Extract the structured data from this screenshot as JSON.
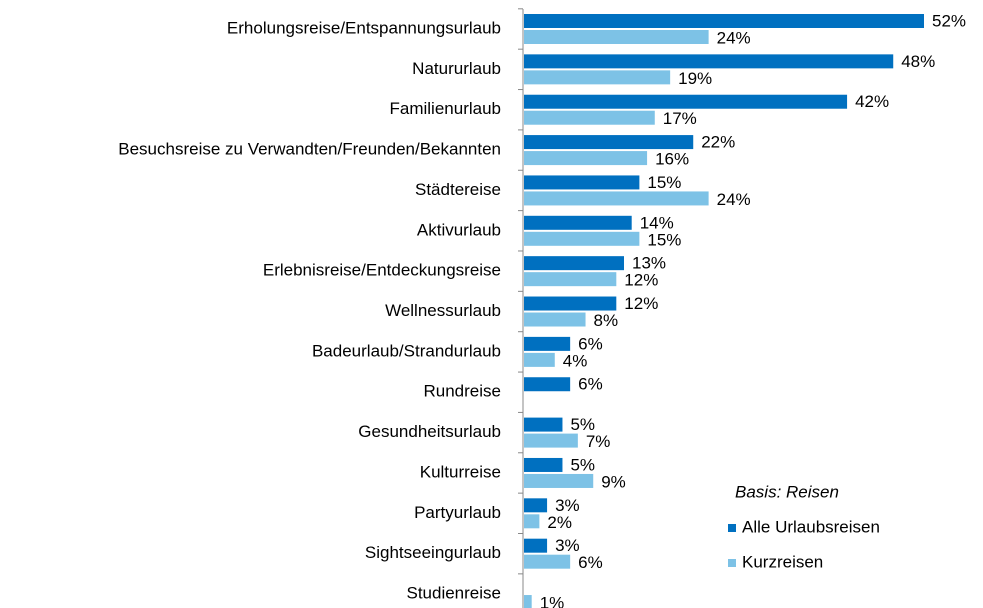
{
  "chart_data": {
    "type": "hbar",
    "categories": [
      "Erholungsreise/Entspannungsurlaub",
      "Natururlaub",
      "Familienurlaub",
      "Besuchsreise zu Verwandten/Freunden/Bekannten",
      "Städtereise",
      "Aktivurlaub",
      "Erlebnisreise/Entdeckungsreise",
      "Wellnessurlaub",
      "Badeurlaub/Strandurlaub",
      "Rundreise",
      "Gesundheitsurlaub",
      "Kulturreise",
      "Partyurlaub",
      "Sightseeingurlaub",
      "Studienreise"
    ],
    "series": [
      {
        "name": "Alle Urlaubsreisen",
        "color": "#0070c0",
        "values": [
          52,
          48,
          42,
          22,
          15,
          14,
          13,
          12,
          6,
          6,
          5,
          5,
          3,
          3,
          null
        ],
        "value_labels": [
          "52%",
          "48%",
          "42%",
          "22%",
          "15%",
          "14%",
          "13%",
          "12%",
          "6%",
          "6%",
          "5%",
          "5%",
          "3%",
          "3%",
          null
        ]
      },
      {
        "name": "Kurzreisen",
        "color": "#7dc2e6",
        "values": [
          24,
          19,
          17,
          16,
          24,
          15,
          12,
          8,
          4,
          null,
          7,
          9,
          2,
          6,
          1
        ],
        "value_labels": [
          "24%",
          "19%",
          "17%",
          "16%",
          "24%",
          "15%",
          "12%",
          "8%",
          "4%",
          null,
          "7%",
          "9%",
          "2%",
          "6%",
          "1%"
        ]
      }
    ],
    "legend_title": "Basis: Reisen",
    "legend": "bottom-right"
  }
}
